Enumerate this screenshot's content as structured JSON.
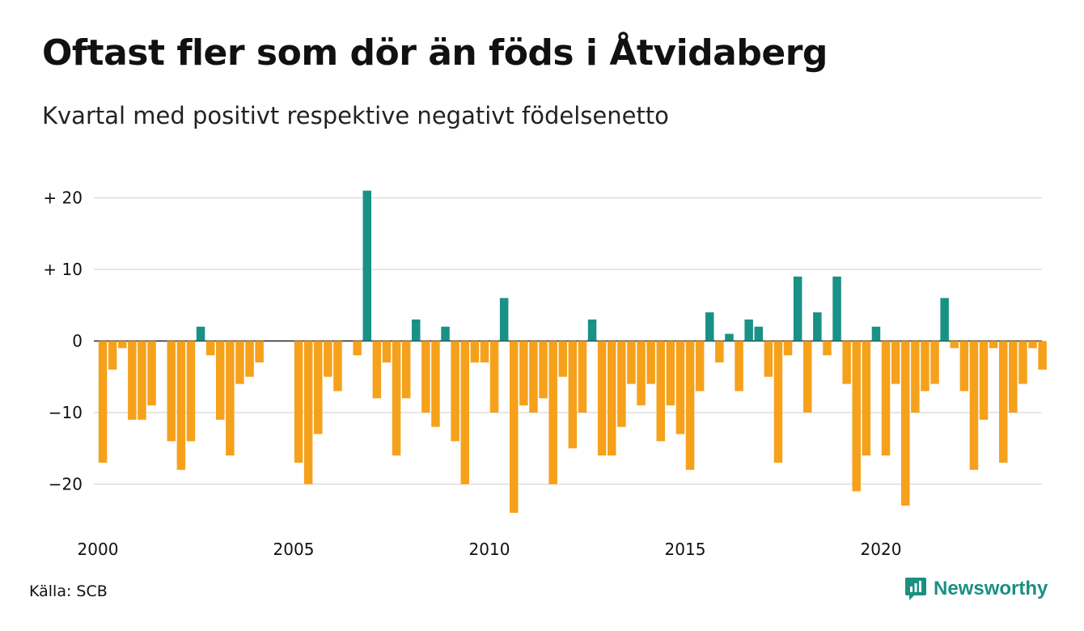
{
  "title": "Oftast fler som dör än föds i Åtvidaberg",
  "subtitle": "Kvartal med positivt respektive negativt födelsenetto",
  "source": "Källa: SCB",
  "brand": {
    "name": "Newsworthy",
    "icon": "newsworthy-logo-icon"
  },
  "colors": {
    "positive": "#1a9186",
    "negative": "#f6a11b",
    "grid": "#dddddd",
    "brand": "#1a8f82"
  },
  "chart_data": {
    "type": "bar",
    "title": "Oftast fler som dör än föds i Åtvidaberg",
    "subtitle": "Kvartal med positivt respektive negativt födelsenetto",
    "x_unit": "quarter",
    "x_range": [
      2000,
      2024.25
    ],
    "x_ticks": [
      2000,
      2005,
      2010,
      2015,
      2020
    ],
    "x_tick_labels": [
      "2000",
      "2005",
      "2010",
      "2015",
      "2020"
    ],
    "ylim": [
      -25,
      25
    ],
    "y_ticks": [
      20,
      10,
      0,
      -10,
      -20
    ],
    "y_tick_labels": [
      "+ 20",
      "+ 10",
      "0",
      "−10",
      "−20"
    ],
    "grid": true,
    "series": [
      {
        "start": "2000 Q1",
        "values": [
          -17,
          -4,
          -1,
          -11,
          -11,
          -9,
          0,
          -14,
          -18,
          -14,
          2,
          -2,
          -11,
          -16,
          -6,
          -5,
          -3,
          0,
          0,
          0,
          -17,
          -20,
          -13,
          -5,
          -7,
          0,
          -2,
          21,
          -8,
          -3,
          -16,
          -8,
          3,
          -10,
          -12,
          2,
          -14,
          -20,
          -3,
          -3,
          -10,
          6,
          -24,
          -9,
          -10,
          -8,
          -20,
          -5,
          -15,
          -10,
          3,
          -16,
          -16,
          -12,
          -6,
          -9,
          -6,
          -14,
          -9,
          -13,
          -18,
          -7,
          4,
          -3,
          1,
          -7,
          3,
          2,
          -5,
          -17,
          -2,
          9,
          -10,
          4,
          -2,
          9,
          -6,
          -21,
          -16,
          2,
          -16,
          -6,
          -23,
          -10,
          -7,
          -6,
          6,
          -1,
          -7,
          -18,
          -11,
          -1,
          -17,
          -10,
          -6,
          -1,
          -4
        ]
      }
    ]
  }
}
